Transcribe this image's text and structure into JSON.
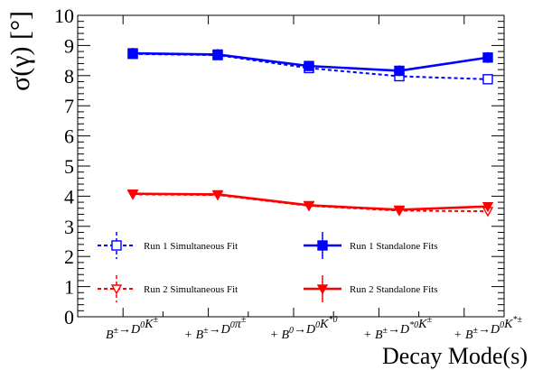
{
  "chart_data": {
    "type": "line",
    "xlabel": "Decay Mode(s)",
    "ylabel": "σ(γ) [°]",
    "ylim": [
      0,
      10
    ],
    "yticks": [
      "0",
      "1",
      "2",
      "3",
      "4",
      "5",
      "6",
      "7",
      "8",
      "9",
      "10"
    ],
    "categories": [
      {
        "id": "B+-D0K+-",
        "base": "B",
        "sup1": "±",
        "arrow": "→",
        "d": "D",
        "sup2": "0",
        "k": "K",
        "sup3": "±"
      },
      {
        "id": "B+-D0pi+-",
        "base": "+ B",
        "sup1": "±",
        "arrow": "→",
        "d": "D",
        "sup2": "0",
        "k": "π",
        "sup3": "±"
      },
      {
        "id": "B0D0K*0",
        "base": "+ B",
        "sup1": "0",
        "arrow": "→",
        "d": "D",
        "sup2": "0",
        "k": "K",
        "sup3": "*0"
      },
      {
        "id": "B+-D*0K+-",
        "base": "+ B",
        "sup1": "±",
        "arrow": "→",
        "d": "D",
        "sup2": "*0",
        "k": "K",
        "sup3": "±"
      },
      {
        "id": "B+-D0K*+-",
        "base": "+ B",
        "sup1": "±",
        "arrow": "→",
        "d": "D",
        "sup2": "0",
        "k": "K",
        "sup3": "*±"
      }
    ],
    "series": [
      {
        "name": "Run 1 Simultaneous Fit",
        "color": "#0000ff",
        "style": "dashed",
        "marker": "open-square",
        "values": [
          8.72,
          8.68,
          8.25,
          7.98,
          7.88
        ],
        "errors": [
          0.18,
          0.18,
          0.18,
          0.18,
          0.15
        ]
      },
      {
        "name": "Run 1 Standalone Fits",
        "color": "#0000ff",
        "style": "solid",
        "marker": "filled-square",
        "values": [
          8.74,
          8.7,
          8.32,
          8.16,
          8.6
        ],
        "errors": [
          0.18,
          0.18,
          0.15,
          0.18,
          0.18
        ]
      },
      {
        "name": "Run 2 Simultaneous Fit",
        "color": "#ff0000",
        "style": "dashed",
        "marker": "open-triangle-down",
        "values": [
          4.06,
          4.04,
          3.68,
          3.52,
          3.5
        ],
        "errors": [
          0.05,
          0.05,
          0.05,
          0.05,
          0.05
        ]
      },
      {
        "name": "Run 2 Standalone Fits",
        "color": "#ff0000",
        "style": "solid",
        "marker": "filled-triangle-down",
        "values": [
          4.08,
          4.06,
          3.7,
          3.55,
          3.66
        ],
        "errors": [
          0.05,
          0.05,
          0.05,
          0.05,
          0.05
        ]
      }
    ],
    "legend": "bottom, two columns",
    "grid": false
  }
}
